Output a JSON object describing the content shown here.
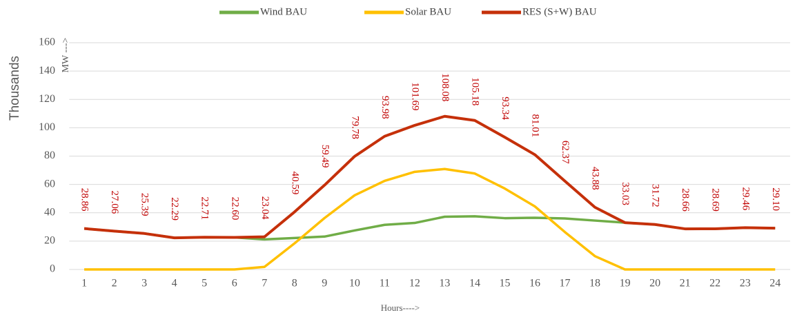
{
  "chart_data": {
    "type": "line",
    "categories": [
      "1",
      "2",
      "3",
      "4",
      "5",
      "6",
      "7",
      "8",
      "9",
      "10",
      "11",
      "12",
      "13",
      "14",
      "15",
      "16",
      "17",
      "18",
      "19",
      "20",
      "21",
      "22",
      "23",
      "24"
    ],
    "series": [
      {
        "name": "Wind BAU",
        "color": "#70ad47",
        "values": [
          28.86,
          27.06,
          25.39,
          22.29,
          22.71,
          22.6,
          21.2,
          22.2,
          23.2,
          27.5,
          31.5,
          32.8,
          37.2,
          37.5,
          36.2,
          36.5,
          36.0,
          34.5,
          33.03,
          31.72,
          28.66,
          28.69,
          29.46,
          29.1
        ]
      },
      {
        "name": "Solar BAU",
        "color": "#ffc000",
        "values": [
          0,
          0,
          0,
          0,
          0,
          0,
          1.8,
          18.4,
          36.3,
          52.3,
          62.5,
          68.9,
          70.9,
          67.7,
          57.1,
          44.5,
          26.4,
          9.4,
          0,
          0,
          0,
          0,
          0,
          0
        ]
      },
      {
        "name": "RES (S+W) BAU",
        "color": "#c5300a",
        "values": [
          28.86,
          27.06,
          25.39,
          22.29,
          22.71,
          22.6,
          23.04,
          40.59,
          59.49,
          79.78,
          93.98,
          101.69,
          108.08,
          105.18,
          93.34,
          81.01,
          62.37,
          43.88,
          33.03,
          31.72,
          28.66,
          28.69,
          29.46,
          29.1
        ],
        "value_labels": [
          "28.86",
          "27.06",
          "25.39",
          "22.29",
          "22.71",
          "22.60",
          "23.04",
          "40.59",
          "59.49",
          "79.78",
          "93.98",
          "101.69",
          "108.08",
          "105.18",
          "93.34",
          "81.01",
          "62.37",
          "43.88",
          "33.03",
          "31.72",
          "28.66",
          "28.69",
          "29.46",
          "29.10"
        ]
      }
    ],
    "ylim": [
      0,
      160
    ],
    "yticks": [
      0,
      20,
      40,
      60,
      80,
      100,
      120,
      140,
      160
    ],
    "ylabel": "Thousands",
    "ylabel2": "MW --->",
    "xlabel": "Hours---->",
    "grid": true,
    "legend": "top"
  }
}
